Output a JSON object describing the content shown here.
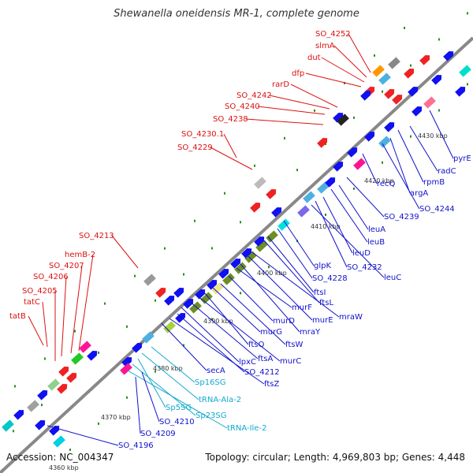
{
  "title": "Shewanella oneidensis MR-1, complete genome",
  "accession": "Accession: NC_004347",
  "summary": "Topology: circular; Length: 4,969,803 bp; Genes: 4,448",
  "colors": {
    "backbone": "#808080",
    "cds": "#1010f0",
    "rna": "#00bcd4",
    "label_red": "#dd1111",
    "label_blue": "#1111cc",
    "label_cyan": "#11aacc"
  },
  "ticks": [
    "4370 kbp",
    "4380 kbp",
    "4390 kbp",
    "4400 kbp",
    "4410 kbp",
    "4420 kbp",
    "4430 kbp"
  ],
  "top_labels": [
    "SO_4252",
    "slmA",
    "dut",
    "dfp",
    "rarD",
    "SO_4242",
    "SO_4240",
    "SO_4238",
    "SO_4230.1",
    "SO_4229",
    "SO_4213",
    "hemB-2",
    "SO_4207",
    "SO_4206",
    "SO_4205",
    "tatC",
    "tatB"
  ],
  "bottom_labels": [
    "pyrE",
    "radC",
    "rpmB",
    "argA",
    "SO_4244",
    "recQ",
    "SO_4239",
    "leuA",
    "leuB",
    "leuD",
    "SO_4232",
    "leuC",
    "glpK",
    "SO_4228",
    "ftsI",
    "ftsL",
    "mraW",
    "murE",
    "mraY",
    "murF",
    "murD",
    "ftsW",
    "murG",
    "ftsQ",
    "murC",
    "ftsA",
    "lpxC",
    "SO_4212",
    "ftsZ",
    "secA",
    "Sp16SG",
    "tRNA-Ala-2",
    "Sp5SG",
    "Sp23SG",
    "tRNA-Ile-2",
    "SO_4210",
    "SO_4209",
    "SO_4196"
  ],
  "partial_tick": "4360 kbp"
}
